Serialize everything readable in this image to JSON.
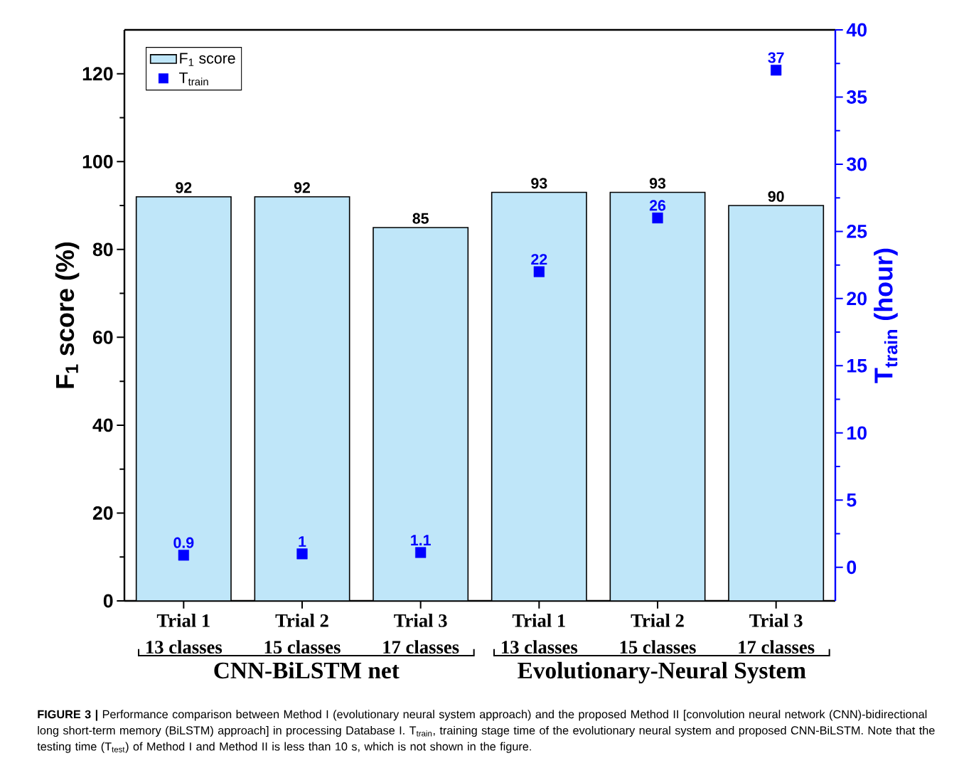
{
  "chart_data": {
    "type": "bar",
    "categories": [
      "Trial 1\n13 classes",
      "Trial 2\n15 classes",
      "Trial 3\n17 classes",
      "Trial 1\n13 classes",
      "Trial 2\n15 classes",
      "Trial 3\n17 classes"
    ],
    "ylabel": "F$_{1}$ score (%)",
    "y2label": "T$_{train}$ (hour)",
    "series": [
      {
        "name": "F$_{1}$ score",
        "color": "#bfe6f9",
        "values": [
          92,
          92,
          85,
          93,
          93,
          90
        ]
      },
      {
        "name": "T$_{train}$",
        "type": "scatter",
        "axis": "y2",
        "color": "#0000ff",
        "values": [
          0.9,
          1,
          1.1,
          22,
          26,
          37
        ]
      }
    ],
    "ylim": [
      0,
      130
    ],
    "yticks": [
      0,
      20,
      40,
      60,
      80,
      100,
      120
    ],
    "y2lim": [
      -2.5,
      40
    ],
    "y2ticks": [
      0,
      5,
      10,
      15,
      20,
      25,
      30,
      35,
      40
    ],
    "data_labels": true,
    "legend": "top left",
    "marker": "square",
    "grid": false,
    "annotations": [
      "CNN-BiLSTM net",
      "Evolutionary-Neural System",
      "**FIGURE 3 |** Performance comparison between Method I (evolutionary neural system approach) and the proposed Method II [convolution neural network (CNN)-bidirectional long short-term memory (BiLSTM) approach] in processing Database I. T$_{train}$, training stage time of the evolutionary neural system and proposed CNN-BiLSTM. Note that the testing time (T$_{test}$) of Method I and Method II is less than 10 s, which is not shown in the figure."
    ]
  }
}
